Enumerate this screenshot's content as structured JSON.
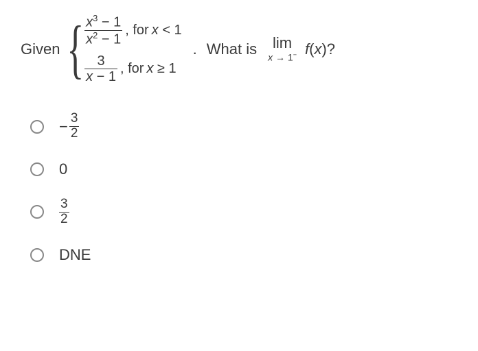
{
  "colors": {
    "text": "#3a3a3a",
    "background": "#ffffff",
    "radio_border": "#888888",
    "fraction_bar": "#3a3a3a"
  },
  "typography": {
    "base_fontsize": 20,
    "label_fontsize": 22,
    "limit_sub_fontsize": 14,
    "font_family": "Arial"
  },
  "question": {
    "given_label": "Given",
    "piecewise": {
      "pieces": [
        {
          "numerator_html": "x³ − 1",
          "denominator_html": "x² − 1",
          "condition_prefix": ", for ",
          "condition": "x < 1"
        },
        {
          "numerator_html": "3",
          "denominator_html": "x − 1",
          "condition_prefix": ", for ",
          "condition": "x ≥ 1"
        }
      ]
    },
    "period": ".",
    "prompt": "What is",
    "limit_label": "lim",
    "limit_sub_html": "x → 1⁻",
    "fx_html": "f(x)?",
    "question_mark": ""
  },
  "options": [
    {
      "type": "neg_frac",
      "neg": "−",
      "num": "3",
      "den": "2",
      "selected": false
    },
    {
      "type": "text",
      "label": "0",
      "selected": false
    },
    {
      "type": "frac",
      "num": "3",
      "den": "2",
      "selected": false
    },
    {
      "type": "text",
      "label": "DNE",
      "selected": false
    }
  ]
}
